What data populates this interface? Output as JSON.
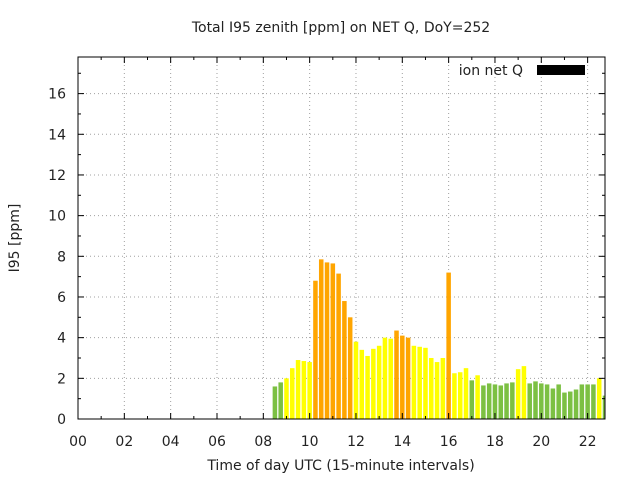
{
  "chart_data": {
    "type": "bar",
    "title": "Total I95 zenith [ppm] on NET Q, DoY=252",
    "xlabel": "Time of day UTC (15-minute intervals)",
    "ylabel": "I95 [ppm]",
    "xlim": [
      0,
      22.75
    ],
    "ylim": [
      0,
      17.8
    ],
    "xticks": [
      "00",
      "02",
      "04",
      "06",
      "08",
      "10",
      "12",
      "14",
      "16",
      "18",
      "20",
      "22"
    ],
    "yticks": [
      "0",
      "2",
      "4",
      "6",
      "8",
      "10",
      "12",
      "14",
      "16"
    ],
    "grid": true,
    "legend": {
      "position": "top-right",
      "entries": [
        {
          "name": "ion net Q",
          "color": "#000000"
        }
      ]
    },
    "colors": {
      "green": "#7cc043",
      "yellow": "#ffff00",
      "orange": "#ffa500"
    },
    "bars": [
      {
        "t": 8.5,
        "v": 1.6,
        "c": "green"
      },
      {
        "t": 8.75,
        "v": 1.8,
        "c": "green"
      },
      {
        "t": 9.0,
        "v": 2.0,
        "c": "yellow"
      },
      {
        "t": 9.25,
        "v": 2.5,
        "c": "yellow"
      },
      {
        "t": 9.5,
        "v": 2.9,
        "c": "yellow"
      },
      {
        "t": 9.75,
        "v": 2.85,
        "c": "yellow"
      },
      {
        "t": 10.0,
        "v": 2.8,
        "c": "yellow"
      },
      {
        "t": 10.25,
        "v": 6.8,
        "c": "orange"
      },
      {
        "t": 10.5,
        "v": 7.85,
        "c": "orange"
      },
      {
        "t": 10.75,
        "v": 7.7,
        "c": "orange"
      },
      {
        "t": 11.0,
        "v": 7.65,
        "c": "orange"
      },
      {
        "t": 11.25,
        "v": 7.15,
        "c": "orange"
      },
      {
        "t": 11.5,
        "v": 5.8,
        "c": "orange"
      },
      {
        "t": 11.75,
        "v": 5.0,
        "c": "orange"
      },
      {
        "t": 12.0,
        "v": 3.8,
        "c": "yellow"
      },
      {
        "t": 12.25,
        "v": 3.4,
        "c": "yellow"
      },
      {
        "t": 12.5,
        "v": 3.1,
        "c": "yellow"
      },
      {
        "t": 12.75,
        "v": 3.45,
        "c": "yellow"
      },
      {
        "t": 13.0,
        "v": 3.6,
        "c": "yellow"
      },
      {
        "t": 13.25,
        "v": 4.0,
        "c": "yellow"
      },
      {
        "t": 13.5,
        "v": 3.95,
        "c": "yellow"
      },
      {
        "t": 13.75,
        "v": 4.35,
        "c": "orange"
      },
      {
        "t": 14.0,
        "v": 4.1,
        "c": "orange"
      },
      {
        "t": 14.25,
        "v": 4.0,
        "c": "orange"
      },
      {
        "t": 14.5,
        "v": 3.6,
        "c": "yellow"
      },
      {
        "t": 14.75,
        "v": 3.55,
        "c": "yellow"
      },
      {
        "t": 15.0,
        "v": 3.5,
        "c": "yellow"
      },
      {
        "t": 15.25,
        "v": 3.0,
        "c": "yellow"
      },
      {
        "t": 15.5,
        "v": 2.8,
        "c": "yellow"
      },
      {
        "t": 15.75,
        "v": 3.0,
        "c": "yellow"
      },
      {
        "t": 16.0,
        "v": 7.2,
        "c": "orange"
      },
      {
        "t": 16.25,
        "v": 2.25,
        "c": "yellow"
      },
      {
        "t": 16.5,
        "v": 2.3,
        "c": "yellow"
      },
      {
        "t": 16.75,
        "v": 2.5,
        "c": "yellow"
      },
      {
        "t": 17.0,
        "v": 1.9,
        "c": "green"
      },
      {
        "t": 17.25,
        "v": 2.15,
        "c": "yellow"
      },
      {
        "t": 17.5,
        "v": 1.65,
        "c": "green"
      },
      {
        "t": 17.75,
        "v": 1.75,
        "c": "green"
      },
      {
        "t": 18.0,
        "v": 1.7,
        "c": "green"
      },
      {
        "t": 18.25,
        "v": 1.65,
        "c": "green"
      },
      {
        "t": 18.5,
        "v": 1.75,
        "c": "green"
      },
      {
        "t": 18.75,
        "v": 1.8,
        "c": "green"
      },
      {
        "t": 19.0,
        "v": 2.45,
        "c": "yellow"
      },
      {
        "t": 19.25,
        "v": 2.6,
        "c": "yellow"
      },
      {
        "t": 19.5,
        "v": 1.75,
        "c": "green"
      },
      {
        "t": 19.75,
        "v": 1.85,
        "c": "green"
      },
      {
        "t": 20.0,
        "v": 1.75,
        "c": "green"
      },
      {
        "t": 20.25,
        "v": 1.7,
        "c": "green"
      },
      {
        "t": 20.5,
        "v": 1.5,
        "c": "green"
      },
      {
        "t": 20.75,
        "v": 1.7,
        "c": "green"
      },
      {
        "t": 21.0,
        "v": 1.3,
        "c": "green"
      },
      {
        "t": 21.25,
        "v": 1.35,
        "c": "green"
      },
      {
        "t": 21.5,
        "v": 1.45,
        "c": "green"
      },
      {
        "t": 21.75,
        "v": 1.7,
        "c": "green"
      },
      {
        "t": 22.0,
        "v": 1.7,
        "c": "green"
      },
      {
        "t": 22.25,
        "v": 1.7,
        "c": "green"
      },
      {
        "t": 22.5,
        "v": 2.0,
        "c": "yellow"
      },
      {
        "t": 22.75,
        "v": 1.15,
        "c": "green"
      }
    ]
  }
}
